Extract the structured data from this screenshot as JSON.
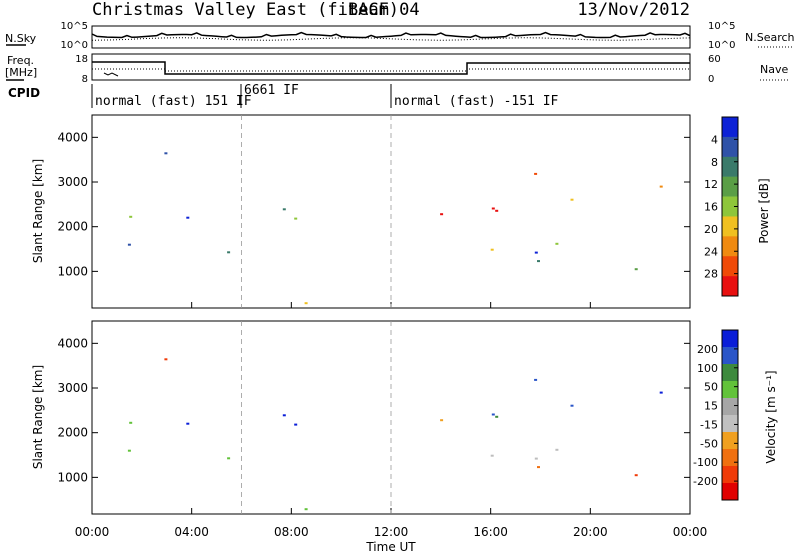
{
  "header": {
    "title": "Christmas Valley East (fitACF)",
    "beam": "Beam 04",
    "date": "13/Nov/2012"
  },
  "top_panels": {
    "noise": {
      "left_label": "N.Sky",
      "right_label": "N.Search",
      "left_ticks": [
        "10^5",
        "10^0"
      ],
      "right_ticks": [
        "10^5",
        "10^0"
      ]
    },
    "freq": {
      "left_label_1": "Freq.",
      "left_label_2": "[MHz]",
      "right_label": "Nave",
      "left_ticks": [
        "18",
        "8"
      ],
      "right_ticks": [
        "60",
        "0"
      ]
    },
    "cpid": {
      "label": "CPID",
      "segments": [
        {
          "text": "normal (fast) 151 IF",
          "start_h": 0,
          "end_h": 6
        },
        {
          "text": "6661 IF",
          "start_h": 6,
          "end_h": 12
        },
        {
          "text": "normal (fast) -151 IF",
          "start_h": 12,
          "end_h": 24
        }
      ]
    }
  },
  "chart_data": [
    {
      "type": "heatmap",
      "panel": "power",
      "xlabel": "Time UT",
      "ylabel": "Slant Range [km]",
      "x_ticks": [
        "00:00",
        "04:00",
        "08:00",
        "12:00",
        "16:00",
        "20:00",
        "00:00"
      ],
      "y_ticks": [
        1000,
        2000,
        3000,
        4000
      ],
      "xlim_hours": [
        0,
        24
      ],
      "ylim_km": [
        180,
        4500
      ],
      "colorbar": {
        "label": "Power [dB]",
        "tick_labels": [
          "4",
          "8",
          "12",
          "16",
          "20",
          "24",
          "28"
        ],
        "colors": [
          "#0d22d6",
          "#2f52a8",
          "#3a7a6a",
          "#5a9e46",
          "#8ec63a",
          "#f0c020",
          "#f08a10",
          "#f04a08",
          "#e81010"
        ]
      }
    },
    {
      "type": "heatmap",
      "panel": "velocity",
      "xlabel": "Time UT",
      "ylabel": "Slant Range [km]",
      "x_ticks": [
        "00:00",
        "04:00",
        "08:00",
        "12:00",
        "16:00",
        "20:00",
        "00:00"
      ],
      "y_ticks": [
        1000,
        2000,
        3000,
        4000
      ],
      "xlim_hours": [
        0,
        24
      ],
      "ylim_km": [
        180,
        4500
      ],
      "colorbar": {
        "label": "Velocity [m s⁻¹]",
        "tick_labels": [
          "200",
          "100",
          "50",
          "15",
          "-15",
          "-50",
          "-100",
          "-200"
        ],
        "colors": [
          "#0a1ed8",
          "#2a55c8",
          "#3d8a3d",
          "#62c23a",
          "#a6a6a6",
          "#c0c0c0",
          "#f0a020",
          "#f07010",
          "#f03a08",
          "#e00000"
        ],
        "ground_scatter_color": "#bdbdbd"
      }
    }
  ]
}
